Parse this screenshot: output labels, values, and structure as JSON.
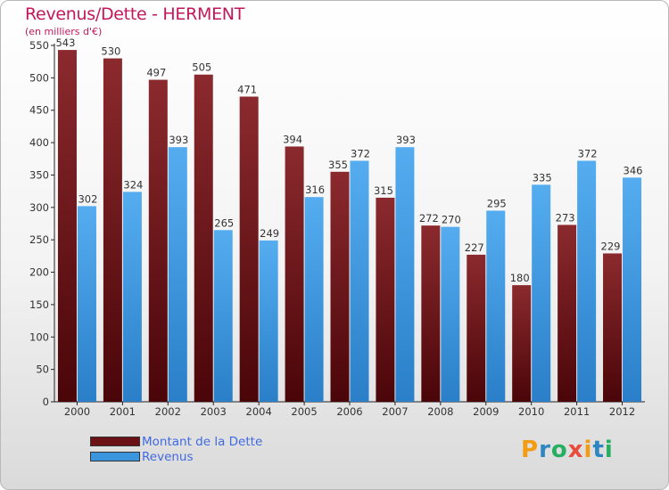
{
  "header": {
    "title": "Revenus/Dette - HERMENT",
    "subtitle": "(en milliers d'€)"
  },
  "colors": {
    "dette": "#6b1216",
    "revenus": "#3a95dc",
    "title": "#c2185b",
    "legend_text": "#4169e1"
  },
  "chart_data": {
    "type": "bar",
    "categories": [
      "2000",
      "2001",
      "2002",
      "2003",
      "2004",
      "2005",
      "2006",
      "2007",
      "2008",
      "2009",
      "2010",
      "2011",
      "2012"
    ],
    "series": [
      {
        "name": "Montant de la Dette",
        "values": [
          543,
          530,
          497,
          505,
          471,
          394,
          355,
          315,
          272,
          227,
          180,
          273,
          229
        ]
      },
      {
        "name": "Revenus",
        "values": [
          302,
          324,
          393,
          265,
          249,
          316,
          372,
          393,
          270,
          295,
          335,
          372,
          346
        ]
      }
    ],
    "title": "Revenus/Dette - HERMENT",
    "subtitle": "(en milliers d'€)",
    "ylim": [
      0,
      550
    ],
    "yticks": [
      0,
      50,
      100,
      150,
      200,
      250,
      300,
      350,
      400,
      450,
      500,
      550
    ],
    "grid": false,
    "legend": "bottom-left"
  },
  "legend": {
    "items": [
      {
        "label": "Montant de la Dette",
        "color": "#6b1216"
      },
      {
        "label": "Revenus",
        "color": "#3a95dc"
      }
    ]
  },
  "logo": {
    "letters": [
      "P",
      "r",
      "o",
      "x",
      "i",
      "t",
      "i"
    ],
    "colors": [
      "#f39c12",
      "#2e86c1",
      "#27ae60",
      "#e74c3c",
      "#f39c12",
      "#2e86c1",
      "#27ae60"
    ]
  }
}
